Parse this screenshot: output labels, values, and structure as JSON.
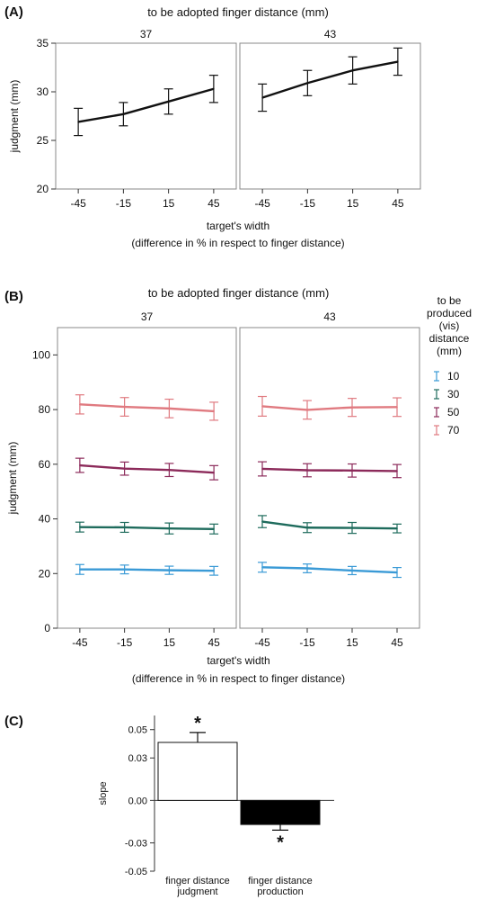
{
  "chart_data": [
    {
      "panel_label": "(A)",
      "type": "line",
      "title": "to be adopted finger distance (mm)",
      "facets": [
        "37",
        "43"
      ],
      "categories": [
        "-45",
        "-15",
        "15",
        "45"
      ],
      "xlabel": "target's width",
      "xlabel2": "(difference in % in respect to finger distance)",
      "ylabel": "judgment (mm)",
      "ylim": [
        20,
        35
      ],
      "yticks": [
        20,
        25,
        30,
        35
      ],
      "series": [
        {
          "color": "#111111",
          "values": [
            [
              26.9,
              27.7,
              29.0,
              30.3
            ],
            [
              29.4,
              30.9,
              32.2,
              33.1
            ]
          ],
          "err": [
            [
              1.4,
              1.2,
              1.3,
              1.4
            ],
            [
              1.4,
              1.3,
              1.4,
              1.4
            ]
          ]
        }
      ]
    },
    {
      "panel_label": "(B)",
      "type": "line",
      "title": "to be adopted finger distance (mm)",
      "facets": [
        "37",
        "43"
      ],
      "categories": [
        "-45",
        "-15",
        "15",
        "45"
      ],
      "xlabel": "target's width",
      "xlabel2": "(difference in % in respect to finger distance)",
      "ylabel": "judgment (mm)",
      "ylim": [
        0,
        110
      ],
      "yticks": [
        0,
        20,
        40,
        60,
        80,
        100
      ],
      "legend_title": [
        "to be",
        "produced",
        "(vis)",
        "distance",
        "(mm)"
      ],
      "legend_position": "right",
      "series": [
        {
          "name": "10",
          "color": "#3a9ad6",
          "values": [
            [
              21.5,
              21.5,
              21.2,
              21.0
            ],
            [
              22.3,
              21.9,
              21.1,
              20.4
            ]
          ],
          "err": [
            [
              1.8,
              1.6,
              1.5,
              1.6
            ],
            [
              1.8,
              1.6,
              1.5,
              1.8
            ]
          ]
        },
        {
          "name": "30",
          "color": "#1e6b5c",
          "values": [
            [
              37.0,
              36.9,
              36.5,
              36.3
            ],
            [
              39.0,
              36.8,
              36.7,
              36.5
            ]
          ],
          "err": [
            [
              1.8,
              1.8,
              2.0,
              1.8
            ],
            [
              2.2,
              1.8,
              2.0,
              1.6
            ]
          ]
        },
        {
          "name": "50",
          "color": "#8c2a5a",
          "values": [
            [
              59.6,
              58.4,
              57.9,
              56.9
            ],
            [
              58.3,
              57.8,
              57.7,
              57.5
            ]
          ],
          "err": [
            [
              2.6,
              2.4,
              2.4,
              2.6
            ],
            [
              2.6,
              2.4,
              2.4,
              2.4
            ]
          ]
        },
        {
          "name": "70",
          "color": "#e07a80",
          "values": [
            [
              81.9,
              81.0,
              80.4,
              79.4
            ],
            [
              81.2,
              79.9,
              80.8,
              80.9
            ]
          ],
          "err": [
            [
              3.5,
              3.4,
              3.4,
              3.3
            ],
            [
              3.6,
              3.4,
              3.3,
              3.4
            ]
          ]
        }
      ]
    },
    {
      "panel_label": "(C)",
      "type": "bar",
      "categories": [
        [
          "finger distance",
          "judgment"
        ],
        [
          "finger distance",
          "production"
        ]
      ],
      "ylabel": "slope",
      "ylim": [
        -0.05,
        0.06
      ],
      "yticks": [
        -0.05,
        -0.03,
        0.0,
        0.03,
        0.05
      ],
      "yticklabels": [
        "-0.05",
        "-0.03",
        "0.00",
        "0.03",
        "0.05"
      ],
      "values": [
        0.041,
        -0.017
      ],
      "err": [
        0.007,
        0.004
      ],
      "fills": [
        "#ffffff",
        "#000000"
      ],
      "annotations": [
        "*",
        "*"
      ]
    }
  ]
}
